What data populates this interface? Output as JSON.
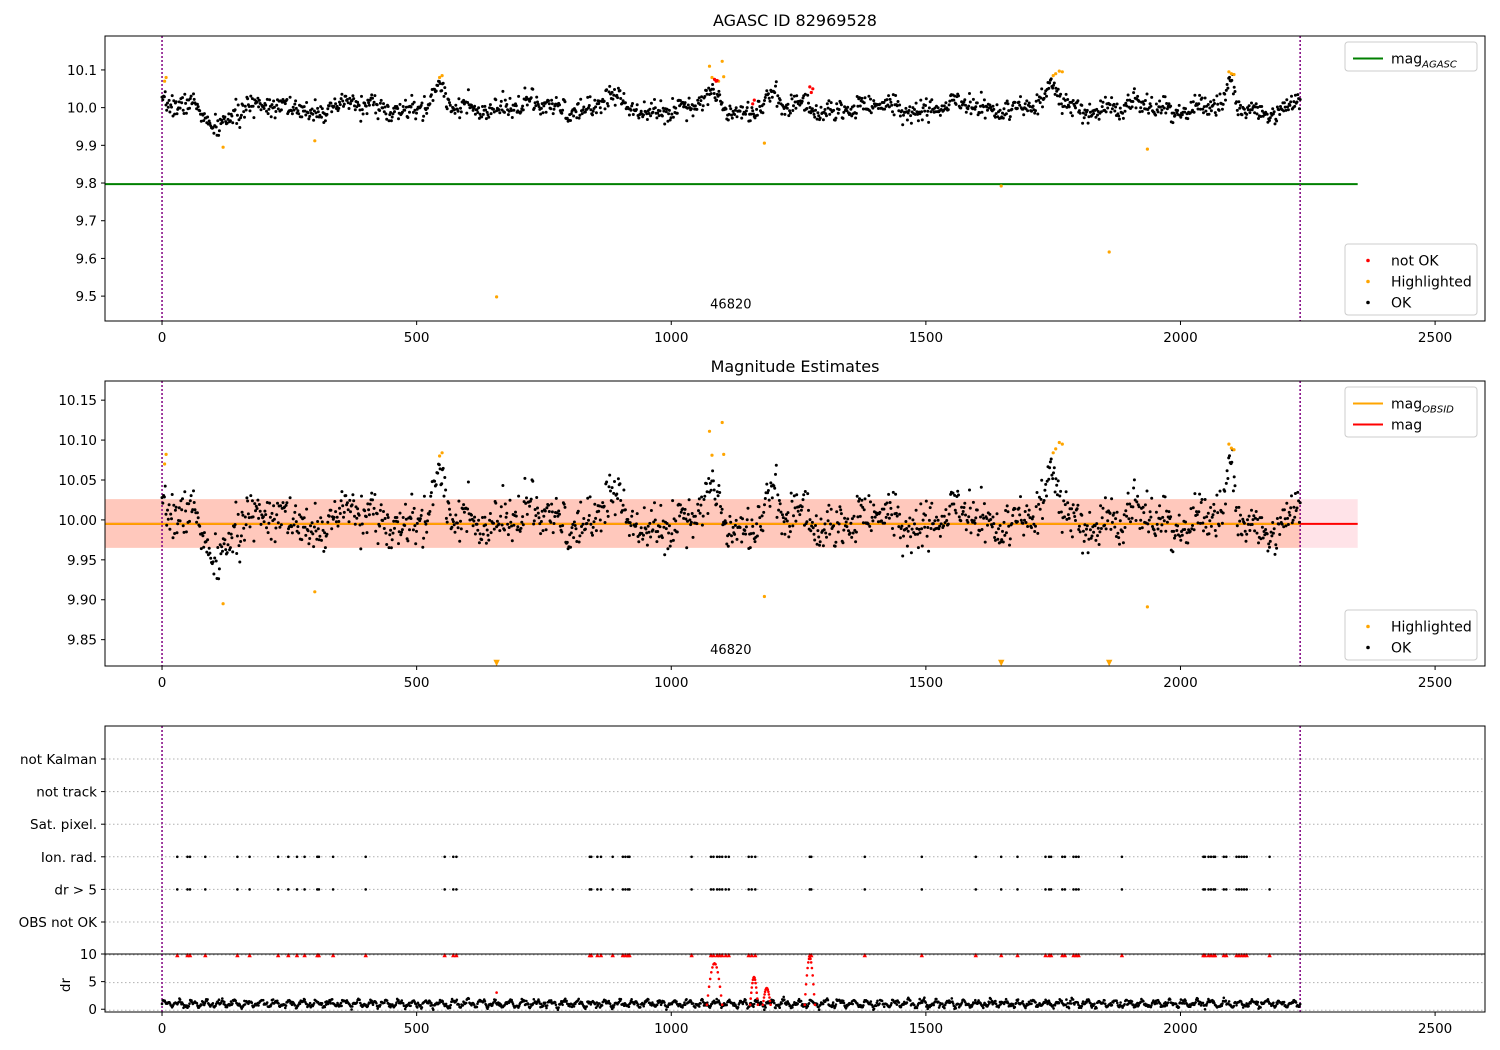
{
  "colors": {
    "ok": "#000000",
    "highlighted": "#ffa500",
    "not_ok": "#ff0000",
    "agasc_line": "#008000",
    "mag_line": "#ff0000",
    "mag_obsid_line": "#ffa500",
    "band_pink": "#ffc0cb",
    "band_orange": "#ffb58c",
    "obs_boundary": "#800080",
    "grid": "#b0b0b0"
  },
  "chart_data": [
    {
      "type": "scatter",
      "title": "AGASC ID 82969528",
      "xlabel": "",
      "ylabel": "",
      "xlim": [
        -112,
        2598
      ],
      "ylim": [
        9.434,
        10.19
      ],
      "x_ticks": [
        0,
        500,
        1000,
        1500,
        2000,
        2500
      ],
      "y_ticks": [
        9.5,
        9.6,
        9.7,
        9.8,
        9.9,
        10.0,
        10.1
      ],
      "y_tick_labels": [
        "9.5",
        "9.6",
        "9.7",
        "9.8",
        "9.9",
        "10.0",
        "10.1"
      ],
      "obs_boundaries": [
        0,
        2235
      ],
      "obsid_label": {
        "text": "46820",
        "x": 1117,
        "y": 9.467
      },
      "hlines": [
        {
          "name": "mag_AGASC",
          "y": 9.797,
          "x_range": [
            -112,
            2348
          ],
          "color": "#008000"
        }
      ],
      "legend_upper": {
        "position": "upper right",
        "entries": [
          {
            "label": "mag",
            "sub": "AGASC",
            "kind": "line",
            "color": "#008000"
          }
        ]
      },
      "legend_lower": {
        "position": "lower right",
        "entries": [
          {
            "label": "not OK",
            "kind": "marker",
            "color": "#ff0000"
          },
          {
            "label": "Highlighted",
            "kind": "marker",
            "color": "#ffa500"
          },
          {
            "label": "OK",
            "kind": "marker",
            "color": "#000000"
          }
        ]
      },
      "series": [
        {
          "name": "OK",
          "color": "#000000",
          "generated": {
            "x_range": [
              0,
              2235
            ],
            "n": 1450,
            "mean": 10.0,
            "noise": 0.014,
            "seed": 7
          }
        },
        {
          "name": "Highlighted",
          "color": "#ffa500",
          "points": [
            [
              5,
              10.07
            ],
            [
              8,
              10.08
            ],
            [
              120,
              9.895
            ],
            [
              300,
              9.912
            ],
            [
              545,
              10.08
            ],
            [
              550,
              10.085
            ],
            [
              657,
              9.498
            ],
            [
              1075,
              10.11
            ],
            [
              1080,
              10.08
            ],
            [
              1093,
              10.07
            ],
            [
              1100,
              10.123
            ],
            [
              1103,
              10.082
            ],
            [
              1183,
              9.906
            ],
            [
              1648,
              9.792
            ],
            [
              1750,
              10.085
            ],
            [
              1755,
              10.09
            ],
            [
              1762,
              10.097
            ],
            [
              1768,
              10.095
            ],
            [
              1860,
              9.617
            ],
            [
              1935,
              9.89
            ],
            [
              2095,
              10.095
            ],
            [
              2100,
              10.09
            ],
            [
              2105,
              10.088
            ]
          ]
        },
        {
          "name": "not OK",
          "color": "#ff0000",
          "points": [
            [
              1085,
              10.075
            ],
            [
              1088,
              10.07
            ],
            [
              1090,
              10.072
            ],
            [
              1160,
              10.01
            ],
            [
              1163,
              10.02
            ],
            [
              1272,
              10.055
            ],
            [
              1275,
              10.04
            ],
            [
              1278,
              10.05
            ]
          ]
        }
      ]
    },
    {
      "type": "scatter",
      "title": "Magnitude Estimates",
      "xlabel": "",
      "ylabel": "",
      "xlim": [
        -112,
        2598
      ],
      "ylim": [
        9.817,
        10.174
      ],
      "x_ticks": [
        0,
        500,
        1000,
        1500,
        2000,
        2500
      ],
      "y_ticks": [
        9.85,
        9.9,
        9.95,
        10.0,
        10.05,
        10.1,
        10.15
      ],
      "y_tick_labels": [
        "9.85",
        "9.90",
        "9.95",
        "10.00",
        "10.05",
        "10.10",
        "10.15"
      ],
      "obs_boundaries": [
        0,
        2235
      ],
      "obsid_label": {
        "text": "46820",
        "x": 1117,
        "y": 9.832
      },
      "bands": [
        {
          "name": "band_pink",
          "y_range": [
            9.965,
            10.026
          ],
          "x_range": [
            -112,
            2348
          ],
          "color": "#ffc0cb",
          "opacity": 0.45
        },
        {
          "name": "band_orange",
          "y_range": [
            9.965,
            10.026
          ],
          "x_range": [
            -112,
            2235
          ],
          "color": "#ffa07a",
          "opacity": 0.4
        }
      ],
      "hlines": [
        {
          "name": "mag",
          "y": 9.995,
          "x_range": [
            -112,
            2348
          ],
          "color": "#ff0000"
        },
        {
          "name": "mag_OBSID",
          "y": 9.995,
          "x_range": [
            -112,
            2235
          ],
          "color": "#ffa500"
        }
      ],
      "legend_upper": {
        "position": "upper right",
        "entries": [
          {
            "label": "mag",
            "sub": "OBSID",
            "kind": "line",
            "color": "#ffa500"
          },
          {
            "label": "mag",
            "kind": "line",
            "color": "#ff0000"
          }
        ]
      },
      "legend_lower": {
        "position": "lower right",
        "entries": [
          {
            "label": "Highlighted",
            "kind": "marker",
            "color": "#ffa500"
          },
          {
            "label": "OK",
            "kind": "marker",
            "color": "#000000"
          }
        ]
      },
      "series": [
        {
          "name": "OK",
          "color": "#000000",
          "generated": {
            "x_range": [
              0,
              2235
            ],
            "n": 1450,
            "mean": 10.0,
            "noise": 0.014,
            "seed": 7
          }
        },
        {
          "name": "Highlighted",
          "color": "#ffa500",
          "points": [
            [
              5,
              10.07
            ],
            [
              8,
              10.082
            ],
            [
              120,
              9.895
            ],
            [
              300,
              9.91
            ],
            [
              545,
              10.08
            ],
            [
              550,
              10.084
            ],
            [
              1075,
              10.111
            ],
            [
              1080,
              10.081
            ],
            [
              1100,
              10.122
            ],
            [
              1103,
              10.082
            ],
            [
              1183,
              9.904
            ],
            [
              1750,
              10.084
            ],
            [
              1755,
              10.089
            ],
            [
              1762,
              10.097
            ],
            [
              1768,
              10.095
            ],
            [
              1935,
              9.891
            ],
            [
              2095,
              10.095
            ],
            [
              2100,
              10.09
            ],
            [
              2105,
              10.088
            ]
          ]
        },
        {
          "name": "Highlighted out of range",
          "color": "#ffa500",
          "marker": "triangle-down",
          "points": [
            [
              657,
              9.817
            ],
            [
              1648,
              9.817
            ],
            [
              1860,
              9.817
            ]
          ]
        }
      ]
    },
    {
      "type": "scatter",
      "title": "",
      "xlabel": "",
      "ylabel": "",
      "xlim": [
        -112,
        2598
      ],
      "categories": [
        "not Kalman",
        "not track",
        "Sat. pixel.",
        "Ion. rad.",
        "dr > 5",
        "OBS not OK"
      ],
      "obs_boundaries": [
        0,
        2235
      ],
      "flag_times": [
        30,
        50,
        55,
        85,
        148,
        172,
        228,
        248,
        265,
        280,
        305,
        308,
        336,
        400,
        555,
        572,
        578,
        840,
        843,
        855,
        862,
        885,
        905,
        910,
        915,
        918,
        1040,
        1078,
        1083,
        1090,
        1095,
        1100,
        1107,
        1113,
        1152,
        1158,
        1165,
        1272,
        1275,
        1380,
        1492,
        1598,
        1648,
        1680,
        1735,
        1742,
        1746,
        1768,
        1773,
        1790,
        1795,
        1800,
        1885,
        2045,
        2048,
        2055,
        2060,
        2065,
        2068,
        2085,
        2090,
        2110,
        2115,
        2120,
        2125,
        2130,
        2175
      ],
      "flag_rows": [
        "Ion. rad.",
        "dr > 5"
      ]
    },
    {
      "type": "scatter",
      "title": "",
      "xlabel": "",
      "ylabel": "dr",
      "xlim": [
        -112,
        2598
      ],
      "ylim": [
        -0.5,
        10
      ],
      "x_ticks": [
        0,
        500,
        1000,
        1500,
        2000,
        2500
      ],
      "y_ticks": [
        0,
        5,
        10
      ],
      "y_tick_labels": [
        "0",
        "5",
        "10"
      ],
      "obs_boundaries": [
        0,
        2235
      ],
      "series": [
        {
          "name": "dr",
          "color": "#000000",
          "generated": {
            "x_range": [
              0,
              2235
            ],
            "n": 1700,
            "mean": 1.2,
            "noise": 0.5,
            "seed": 11
          }
        },
        {
          "name": "dr high",
          "color": "#ff0000",
          "arcs": [
            [
              1070,
              1100,
              8.5
            ],
            [
              1155,
              1170,
              6.0
            ],
            [
              1180,
              1195,
              4.0
            ],
            [
              1262,
              1282,
              9.5
            ]
          ],
          "points": [
            [
              657,
              3.2
            ]
          ]
        },
        {
          "name": "dr clipped",
          "color": "#ff0000",
          "marker": "triangle-up",
          "use_flag_times": true,
          "y": 10
        }
      ]
    }
  ]
}
